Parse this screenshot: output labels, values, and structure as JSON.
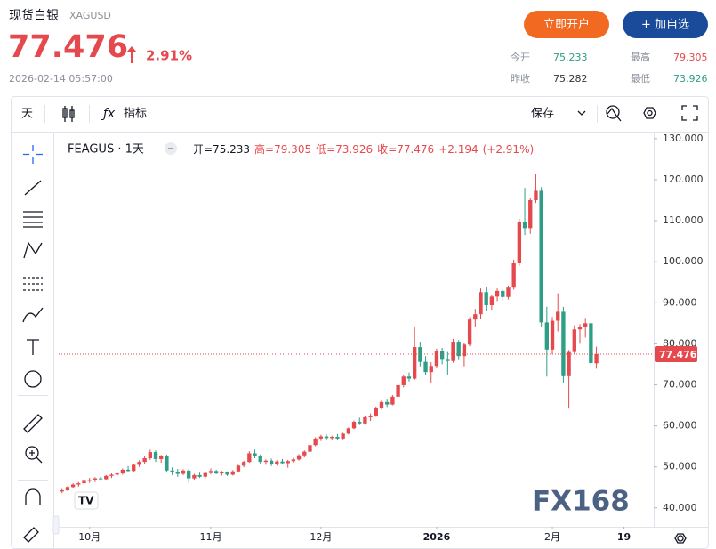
{
  "quote": {
    "name": "现货白银",
    "symbol": "XAGUSD",
    "price": "77.476",
    "change": "2.91%",
    "time": "2026-02-14 05:57:00",
    "stats": [
      {
        "label": "今开",
        "value": "75.233"
      },
      {
        "label": "最高",
        "value": "79.305"
      },
      {
        "label": "昨收",
        "value": "75.282"
      },
      {
        "label": "最低",
        "value": "73.926"
      }
    ],
    "buttons": [
      "立即开户",
      "+ 加自选"
    ]
  },
  "toolbar": {
    "interval": "天",
    "indicators": "指标",
    "save": "保存"
  },
  "watermark": "FX168",
  "chart_data": {
    "type": "candlestick",
    "title": "FEAGUS · 1天",
    "legend": [
      "开=75.233",
      "高=79.305",
      "低=73.926",
      "收=77.476",
      "+2.194",
      "(+2.91%)"
    ],
    "up_color": "#e5494d",
    "down_color": "#2f9e86",
    "last_line_color": "#e5494d",
    "grid": false,
    "open": [
      44.0,
      44.3,
      45.1,
      45.7,
      46.0,
      46.6,
      46.9,
      47.2,
      47.0,
      47.8,
      48.1,
      48.4,
      49.3,
      49.0,
      50.5,
      51.2,
      52.1,
      53.6,
      51.9,
      52.6,
      49.1,
      48.8,
      48.3,
      49.1,
      47.2,
      48.0,
      47.6,
      48.5,
      49.0,
      48.4,
      48.7,
      48.1,
      48.9,
      50.3,
      51.2,
      53.3,
      52.6,
      51.2,
      51.5,
      50.6,
      51.3,
      50.9,
      51.4,
      51.8,
      52.8,
      53.7,
      55.3,
      56.9,
      57.4,
      57.0,
      57.3,
      56.9,
      58.1,
      59.4,
      61.0,
      60.6,
      62.1,
      62.5,
      64.4,
      65.8,
      65.2,
      67.1,
      69.9,
      72.0,
      71.5,
      79.2,
      75.6,
      73.1,
      74.6,
      78.2,
      76.1,
      75.8,
      80.5,
      77.0,
      79.8,
      85.9,
      87.2,
      92.6,
      89.4,
      91.5,
      92.9,
      91.4,
      93.7,
      99.6,
      109.8,
      108.2,
      115.0,
      117.3,
      85.2,
      78.6,
      85.6,
      87.8,
      72.1,
      78.0,
      83.5,
      84.1,
      85.0,
      75.233
    ],
    "high": [
      44.6,
      45.3,
      46.0,
      46.3,
      46.9,
      47.3,
      47.5,
      47.6,
      48.0,
      48.4,
      48.7,
      49.6,
      50.2,
      50.8,
      51.6,
      52.6,
      54.2,
      54.0,
      52.9,
      53.0,
      49.9,
      49.5,
      49.4,
      49.4,
      48.3,
      48.6,
      48.9,
      49.6,
      49.3,
      49.0,
      48.9,
      49.2,
      50.5,
      51.5,
      53.8,
      54.2,
      53.0,
      51.8,
      52.0,
      51.6,
      51.9,
      51.7,
      52.2,
      53.1,
      54.0,
      55.6,
      57.2,
      57.8,
      57.9,
      57.6,
      58.0,
      58.3,
      59.6,
      61.3,
      62.0,
      62.4,
      63.0,
      64.7,
      66.3,
      66.6,
      67.5,
      70.2,
      72.5,
      73.0,
      84.0,
      80.5,
      77.0,
      75.5,
      78.8,
      79.0,
      78.0,
      81.2,
      80.9,
      80.2,
      86.5,
      88.5,
      93.5,
      93.8,
      92.0,
      93.5,
      93.4,
      94.2,
      100.5,
      110.4,
      118.0,
      115.5,
      121.5,
      118.2,
      89.0,
      86.5,
      92.3,
      89.0,
      78.5,
      84.5,
      84.8,
      86.3,
      85.5,
      79.305
    ],
    "low": [
      43.6,
      44.1,
      44.8,
      45.2,
      45.6,
      46.1,
      46.3,
      46.6,
      46.8,
      47.3,
      47.6,
      48.1,
      48.7,
      48.8,
      50.0,
      50.8,
      51.7,
      51.2,
      51.0,
      48.6,
      48.0,
      47.6,
      48.0,
      46.2,
      46.8,
      47.3,
      47.2,
      48.2,
      48.2,
      47.9,
      47.8,
      47.9,
      48.6,
      49.9,
      51.0,
      52.1,
      50.8,
      50.5,
      50.2,
      50.3,
      50.6,
      49.8,
      51.0,
      51.5,
      52.3,
      53.4,
      55.0,
      56.3,
      56.6,
      56.5,
      56.6,
      56.7,
      57.9,
      59.2,
      60.2,
      60.3,
      61.2,
      62.2,
      64.0,
      64.6,
      65.0,
      66.8,
      69.4,
      70.8,
      71.2,
      74.5,
      72.3,
      70.5,
      74.0,
      75.0,
      72.5,
      75.4,
      76.0,
      74.5,
      79.4,
      84.0,
      86.0,
      88.0,
      88.3,
      90.4,
      90.6,
      90.8,
      93.2,
      99.0,
      106.5,
      106.8,
      114.3,
      84.0,
      72.0,
      77.5,
      83.0,
      70.5,
      64.2,
      77.5,
      80.0,
      81.5,
      74.6,
      73.926
    ],
    "close": [
      44.3,
      45.1,
      45.7,
      46.0,
      46.6,
      46.9,
      47.2,
      47.0,
      47.8,
      48.1,
      48.4,
      49.3,
      49.0,
      50.5,
      51.2,
      52.1,
      53.6,
      51.9,
      52.6,
      49.1,
      48.8,
      48.3,
      49.1,
      47.2,
      48.0,
      47.6,
      48.5,
      49.0,
      48.4,
      48.7,
      48.1,
      48.9,
      50.3,
      51.2,
      53.3,
      52.6,
      51.2,
      51.5,
      50.6,
      51.3,
      50.9,
      51.4,
      51.8,
      52.8,
      53.7,
      55.3,
      56.9,
      57.4,
      57.0,
      57.3,
      56.9,
      58.1,
      59.4,
      61.0,
      60.6,
      62.1,
      62.5,
      64.4,
      65.8,
      65.2,
      67.1,
      69.9,
      72.0,
      71.5,
      79.2,
      75.6,
      73.1,
      74.6,
      78.2,
      76.1,
      75.8,
      80.5,
      77.0,
      79.8,
      85.9,
      87.2,
      92.6,
      89.4,
      91.5,
      92.9,
      91.4,
      93.7,
      99.6,
      109.8,
      108.2,
      115.0,
      117.3,
      85.2,
      78.6,
      85.6,
      87.8,
      72.1,
      78.0,
      83.5,
      84.1,
      85.0,
      75.3,
      77.476
    ],
    "ylim": [
      35.4,
      131.7
    ],
    "yticks": [
      {
        "value": 40,
        "label": "40.000"
      },
      {
        "value": 50,
        "label": "50.000"
      },
      {
        "value": 60,
        "label": "60.000"
      },
      {
        "value": 70,
        "label": "70.000"
      },
      {
        "value": 80,
        "label": "80.000"
      },
      {
        "value": 90,
        "label": "90.000"
      },
      {
        "value": 100,
        "label": "100.000"
      },
      {
        "value": 110,
        "label": "110.000"
      },
      {
        "value": 120,
        "label": "120.000"
      },
      {
        "value": 130,
        "label": "130.000"
      }
    ],
    "xlim": [
      -0.6,
      107.4
    ],
    "xticks": [
      {
        "value": 5,
        "label": "10月"
      },
      {
        "value": 27,
        "label": "11月"
      },
      {
        "value": 47,
        "label": "12月"
      },
      {
        "value": 68,
        "label": "2026"
      },
      {
        "value": 89,
        "label": "2月"
      },
      {
        "value": 102,
        "label": "19"
      }
    ]
  }
}
